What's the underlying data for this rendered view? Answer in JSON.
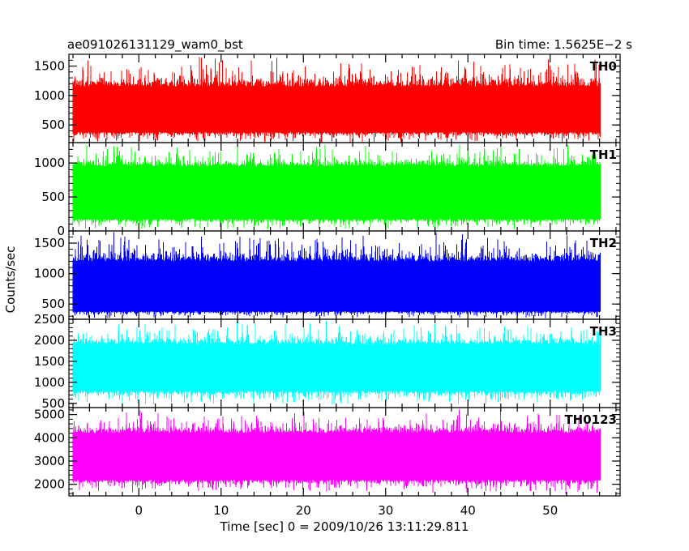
{
  "chart_data": {
    "type": "line",
    "title_left": "ae091026131129_wam0_bst",
    "title_right": "Bin time: 1.5625E−2 s",
    "xlabel": "Time [sec] 0 = 2009/10/26 13:11:29.811",
    "ylabel": "Counts/sec",
    "xlim": [
      -8.5,
      58.5
    ],
    "x_data_range": [
      -8.0,
      56.0
    ],
    "x_ticks": [
      0,
      10,
      20,
      30,
      40,
      50
    ],
    "x_tick_labels": [
      "0",
      "10",
      "20",
      "30",
      "40",
      "50"
    ],
    "grid": false,
    "panels": [
      {
        "name": "TH0",
        "color": "#ff0000",
        "ylim": [
          200,
          1700
        ],
        "y_ticks": [
          500,
          1000,
          1500
        ],
        "y_tick_labels": [
          "500",
          "1000",
          "1500"
        ],
        "mean": 700,
        "noise_min": 170,
        "noise_max": 1680,
        "typical_low": 380,
        "typical_high": 1150
      },
      {
        "name": "TH1",
        "color": "#00ff00",
        "ylim": [
          0,
          1300
        ],
        "y_ticks": [
          0,
          500,
          1000
        ],
        "y_tick_labels": [
          "0",
          "500",
          "1000"
        ],
        "mean": 500,
        "noise_min": 0,
        "noise_max": 1290,
        "typical_low": 180,
        "typical_high": 950
      },
      {
        "name": "TH2",
        "color": "#0000ff",
        "ylim": [
          250,
          1700
        ],
        "y_ticks": [
          500,
          1000,
          1500
        ],
        "y_tick_labels": [
          "500",
          "1000",
          "1500"
        ],
        "mean": 700,
        "noise_min": 260,
        "noise_max": 1690,
        "typical_low": 380,
        "typical_high": 1200
      },
      {
        "name": "TH3",
        "color": "#00ffff",
        "ylim": [
          400,
          2500
        ],
        "y_ticks": [
          500,
          1000,
          1500,
          2000,
          2500
        ],
        "y_tick_labels": [
          "500",
          "1000",
          "1500",
          "2000",
          "2500"
        ],
        "mean": 1300,
        "noise_min": 430,
        "noise_max": 2480,
        "typical_low": 800,
        "typical_high": 1900
      },
      {
        "name": "TH0123",
        "color": "#ff00ff",
        "ylim": [
          1500,
          5300
        ],
        "y_ticks": [
          2000,
          3000,
          4000,
          5000
        ],
        "y_tick_labels": [
          "2000",
          "3000",
          "4000",
          "5000"
        ],
        "mean": 3100,
        "noise_min": 1550,
        "noise_max": 5250,
        "typical_low": 2200,
        "typical_high": 4200
      }
    ]
  }
}
